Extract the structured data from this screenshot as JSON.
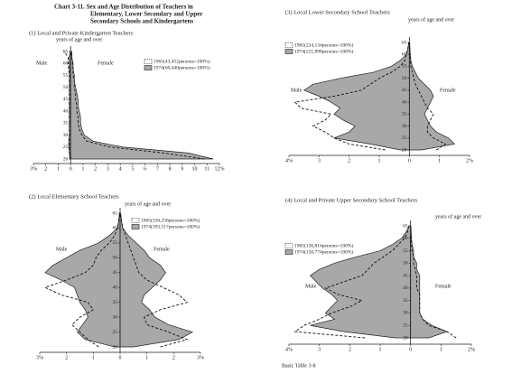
{
  "header": {
    "title_lines": [
      "Chart 3-11.  Sex and Age Distribution of Teachers in",
      "Elementary, Lower Secondary and Upper",
      "Secondary Schools and Kindergartens"
    ]
  },
  "footer": "Basic Table 3-8",
  "chart_data": [
    {
      "type": "pyramid",
      "title": "(1)  Local and Private Kindergarten Teachers",
      "y_label": "years of age and over",
      "male_label": "Male",
      "female_label": "Female",
      "ages": [
        20,
        22.5,
        25,
        27.5,
        30,
        32.5,
        35,
        37.5,
        40,
        42.5,
        45,
        47.5,
        50,
        52.5,
        55,
        57.5,
        60,
        62.5,
        65
      ],
      "series": [
        {
          "name": "1965(43,452persons=100%)",
          "color": "#111111",
          "dashed": true,
          "male": [
            0.05,
            0.1,
            0.1,
            0.1,
            0.1,
            0.1,
            0.1,
            0.1,
            0.1,
            0.1,
            0.1,
            0.1,
            0.1,
            0.1,
            0.1,
            0.15,
            0.2,
            0.2,
            0.5
          ],
          "female": [
            10.8,
            7.5,
            3.2,
            1.3,
            0.9,
            0.7,
            0.6,
            0.6,
            0.5,
            0.5,
            0.4,
            0.4,
            0.3,
            0.3,
            0.2,
            0.2,
            0.15,
            0.1,
            0.05
          ]
        },
        {
          "name": "1974(60,440persons=100%)",
          "color": "#a8a8a8",
          "dashed": false,
          "male": [
            0.05,
            0.1,
            0.15,
            0.15,
            0.1,
            0.1,
            0.1,
            0.1,
            0.1,
            0.1,
            0.1,
            0.1,
            0.1,
            0.1,
            0.1,
            0.1,
            0.1,
            0.1,
            0.05
          ],
          "female": [
            11.5,
            9.5,
            4.2,
            1.8,
            1.1,
            0.9,
            0.8,
            0.8,
            0.7,
            0.6,
            0.6,
            0.5,
            0.4,
            0.3,
            0.3,
            0.2,
            0.2,
            0.1,
            0.1
          ]
        }
      ],
      "xlim": [
        -3,
        12
      ],
      "xticks": [
        {
          "value": -3,
          "label": "3%"
        },
        {
          "value": -2,
          "label": "2"
        },
        {
          "value": -1,
          "label": "1"
        },
        0,
        1,
        2,
        3,
        4,
        5,
        6,
        7,
        8,
        9,
        10,
        11,
        {
          "value": 12,
          "label": "12%"
        }
      ],
      "ylim": [
        20,
        65
      ],
      "yticks": [
        20,
        25,
        30,
        35,
        40,
        45,
        50,
        55,
        60,
        65
      ]
    },
    {
      "type": "pyramid",
      "title": "(2)  Local Elementary School Teachers",
      "y_label": "years of age and over",
      "male_label": "Male",
      "female_label": "Female",
      "ages": [
        20,
        22.5,
        25,
        27.5,
        30,
        32.5,
        35,
        37.5,
        40,
        42.5,
        45,
        47.5,
        50,
        52.5,
        55,
        57.5,
        60,
        62.5,
        65
      ],
      "series": [
        {
          "name": "1965(336,258persons=100%)",
          "color": "#111111",
          "dashed": true,
          "male": [
            0.8,
            1.2,
            1.5,
            1.8,
            1.5,
            1.0,
            1.2,
            2.2,
            2.8,
            2.0,
            1.3,
            1.0,
            0.9,
            0.7,
            0.4,
            0.2,
            0.1,
            0.05,
            0.02
          ],
          "female": [
            1.5,
            2.5,
            1.8,
            1.0,
            0.9,
            1.5,
            2.5,
            2.2,
            1.6,
            1.0,
            0.7,
            0.6,
            0.5,
            0.4,
            0.3,
            0.2,
            0.1,
            0.05,
            0.02
          ]
        },
        {
          "name": "1974(393,517persons=100%)",
          "color": "#a8a8a8",
          "dashed": false,
          "male": [
            0.2,
            1.3,
            1.6,
            1.4,
            1.2,
            1.3,
            1.5,
            1.6,
            1.7,
            2.2,
            2.8,
            2.5,
            2.0,
            1.5,
            0.8,
            0.4,
            0.1,
            0.05,
            0.02
          ],
          "female": [
            0.5,
            2.2,
            2.7,
            1.8,
            1.3,
            1.1,
            0.8,
            0.9,
            1.2,
            1.5,
            1.7,
            1.5,
            1.1,
            0.9,
            0.6,
            0.3,
            0.1,
            0.05,
            0.02
          ]
        }
      ],
      "xlim": [
        -3,
        3
      ],
      "xticks": [
        {
          "value": -3,
          "label": "3%"
        },
        {
          "value": -2,
          "label": "2"
        },
        {
          "value": -1,
          "label": "1"
        },
        0,
        1,
        2,
        {
          "value": 3,
          "label": "3%"
        }
      ],
      "ylim": [
        20,
        65
      ],
      "yticks": [
        20,
        25,
        30,
        35,
        40,
        45,
        50,
        55,
        60,
        65
      ]
    },
    {
      "type": "pyramid",
      "title": "(3)  Local Lower Secondary School Teachers",
      "y_label": "years of age and over",
      "male_label": "Male",
      "female_label": "Female",
      "ages": [
        20,
        22.5,
        25,
        27.5,
        30,
        32.5,
        35,
        37.5,
        40,
        42.5,
        45,
        47.5,
        50,
        52.5,
        55,
        57.5,
        60,
        62.5,
        65
      ],
      "series": [
        {
          "name": "1965(224,134persons=100%)",
          "color": "#111111",
          "dashed": true,
          "male": [
            0.8,
            2.0,
            2.5,
            2.8,
            3.2,
            2.8,
            2.6,
            3.6,
            3.8,
            2.5,
            1.6,
            1.3,
            1.0,
            0.6,
            0.3,
            0.15,
            0.1,
            0.05,
            0.02
          ],
          "female": [
            0.9,
            1.2,
            0.8,
            0.6,
            0.6,
            0.7,
            0.8,
            0.6,
            0.5,
            0.4,
            0.3,
            0.2,
            0.15,
            0.1,
            0.05,
            0.03,
            0.02,
            0.01,
            0.01
          ]
        },
        {
          "name": "1974(221,898persons=100%)",
          "color": "#a8a8a8",
          "dashed": false,
          "male": [
            0.3,
            1.3,
            2.5,
            2.0,
            1.8,
            2.2,
            2.5,
            2.3,
            2.6,
            3.0,
            3.5,
            3.2,
            2.3,
            1.2,
            0.6,
            0.3,
            0.1,
            0.05,
            0.02
          ],
          "female": [
            0.4,
            1.5,
            1.3,
            0.9,
            0.7,
            0.6,
            0.5,
            0.6,
            0.7,
            0.8,
            0.7,
            0.5,
            0.3,
            0.2,
            0.1,
            0.05,
            0.03,
            0.02,
            0.01
          ]
        }
      ],
      "xlim": [
        -4,
        2
      ],
      "xticks": [
        {
          "value": -4,
          "label": "4%"
        },
        {
          "value": -3,
          "label": "3"
        },
        {
          "value": -2,
          "label": "2"
        },
        {
          "value": -1,
          "label": "1"
        },
        0,
        1,
        {
          "value": 2,
          "label": "2%"
        }
      ],
      "ylim": [
        20,
        65
      ],
      "yticks": [
        20,
        25,
        30,
        35,
        40,
        45,
        50,
        55,
        60,
        65
      ]
    },
    {
      "type": "pyramid",
      "title": "(4)  Local and Private Upper Secondary School Teachers",
      "y_label": "years of age and over",
      "male_label": "Male",
      "female_label": "Female",
      "ages": [
        20,
        22.5,
        25,
        27.5,
        30,
        32.5,
        35,
        37.5,
        40,
        42.5,
        45,
        47.5,
        50,
        52.5,
        55,
        57.5,
        60,
        62.5,
        65
      ],
      "series": [
        {
          "name": "1965(136,814persons=100%)",
          "color": "#111111",
          "dashed": true,
          "male": [
            1.5,
            3.8,
            3.5,
            3.0,
            2.6,
            2.0,
            1.6,
            2.4,
            2.8,
            2.2,
            1.6,
            1.4,
            1.2,
            0.9,
            0.6,
            0.4,
            0.2,
            0.1,
            0.05
          ],
          "female": [
            1.5,
            1.2,
            0.6,
            0.4,
            0.3,
            0.3,
            0.3,
            0.3,
            0.2,
            0.2,
            0.2,
            0.15,
            0.1,
            0.1,
            0.05,
            0.03,
            0.02,
            0.01,
            0.01
          ]
        },
        {
          "name": "1974(156,774persons=100%)",
          "color": "#a8a8a8",
          "dashed": false,
          "male": [
            0.5,
            2.2,
            3.3,
            2.5,
            2.8,
            2.6,
            2.4,
            2.6,
            2.9,
            3.1,
            3.3,
            3.0,
            2.5,
            1.8,
            1.0,
            0.6,
            0.3,
            0.15,
            0.05
          ],
          "female": [
            0.6,
            1.2,
            0.7,
            0.4,
            0.3,
            0.3,
            0.3,
            0.3,
            0.3,
            0.3,
            0.3,
            0.2,
            0.2,
            0.1,
            0.1,
            0.05,
            0.03,
            0.02,
            0.01
          ]
        }
      ],
      "xlim": [
        -4,
        2
      ],
      "xticks": [
        {
          "value": -4,
          "label": "4%"
        },
        {
          "value": -3,
          "label": "3"
        },
        {
          "value": -2,
          "label": "2"
        },
        {
          "value": -1,
          "label": "1"
        },
        0,
        1,
        {
          "value": 2,
          "label": "2%"
        }
      ],
      "ylim": [
        20,
        65
      ],
      "yticks": [
        20,
        25,
        30,
        35,
        40,
        45,
        50,
        55,
        60,
        65
      ]
    }
  ]
}
